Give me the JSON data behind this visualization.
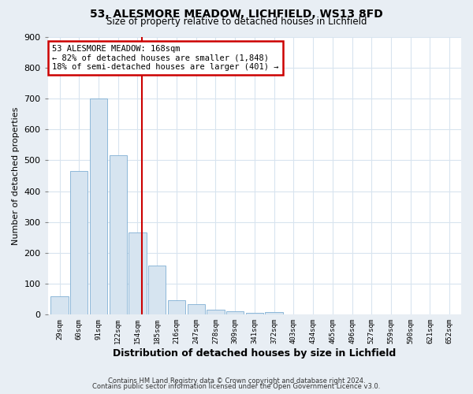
{
  "title": "53, ALESMORE MEADOW, LICHFIELD, WS13 8FD",
  "subtitle": "Size of property relative to detached houses in Lichfield",
  "xlabel": "Distribution of detached houses by size in Lichfield",
  "ylabel": "Number of detached properties",
  "bar_labels": [
    "29sqm",
    "60sqm",
    "91sqm",
    "122sqm",
    "154sqm",
    "185sqm",
    "216sqm",
    "247sqm",
    "278sqm",
    "309sqm",
    "341sqm",
    "372sqm",
    "403sqm",
    "434sqm",
    "465sqm",
    "496sqm",
    "527sqm",
    "559sqm",
    "590sqm",
    "621sqm",
    "652sqm"
  ],
  "bar_values": [
    60,
    465,
    700,
    515,
    265,
    160,
    47,
    35,
    15,
    12,
    5,
    8,
    0,
    0,
    0,
    0,
    0,
    0,
    0,
    0,
    0
  ],
  "bar_color": "#d6e4f0",
  "bar_edgecolor": "#7fafd4",
  "vline_color": "#cc0000",
  "annotation_title": "53 ALESMORE MEADOW: 168sqm",
  "annotation_line1": "← 82% of detached houses are smaller (1,848)",
  "annotation_line2": "18% of semi-detached houses are larger (401) →",
  "annotation_box_edgecolor": "#cc0000",
  "ylim": [
    0,
    900
  ],
  "yticks": [
    0,
    100,
    200,
    300,
    400,
    500,
    600,
    700,
    800,
    900
  ],
  "background_color": "#ffffff",
  "fig_background_color": "#e8eef4",
  "grid_color": "#d8e4ef",
  "footer_line1": "Contains HM Land Registry data © Crown copyright and database right 2024.",
  "footer_line2": "Contains public sector information licensed under the Open Government Licence v3.0."
}
